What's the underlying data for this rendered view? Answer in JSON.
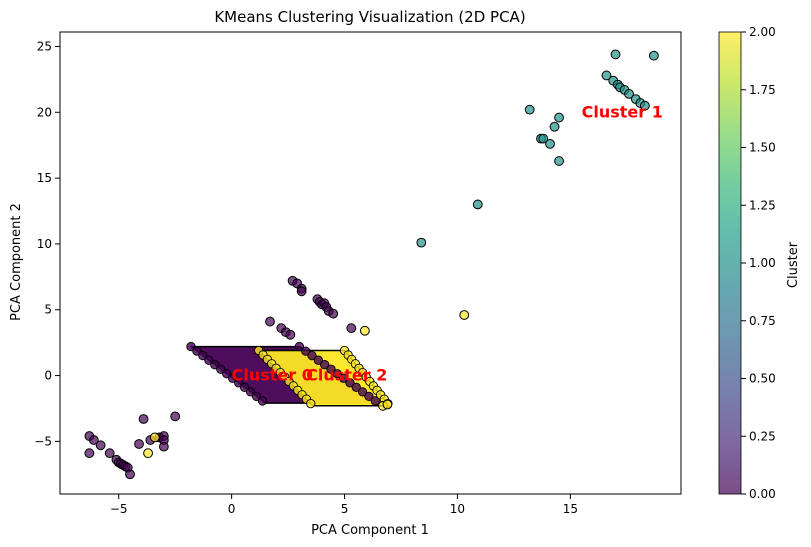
{
  "chart_data": {
    "type": "scatter",
    "title": "KMeans Clustering Visualization (2D PCA)",
    "xlabel": "PCA Component 1",
    "ylabel": "PCA Component 2",
    "xlim": [
      -7.6,
      19.9
    ],
    "ylim": [
      -9.0,
      26.1
    ],
    "x_ticks": [
      -5,
      0,
      5,
      10,
      15
    ],
    "y_ticks": [
      -5,
      0,
      5,
      10,
      15,
      20,
      25
    ],
    "grid": false,
    "colorbar": {
      "label": "Cluster",
      "range": [
        0.0,
        2.0
      ],
      "ticks": [
        "0.00",
        "0.25",
        "0.50",
        "0.75",
        "1.00",
        "1.25",
        "1.50",
        "1.75",
        "2.00"
      ],
      "colormap": "viridis",
      "colors": [
        "#440154",
        "#482878",
        "#3e4989",
        "#31688e",
        "#26828e",
        "#1f9e89",
        "#35b779",
        "#6ece58",
        "#b5de2b",
        "#fde725"
      ]
    },
    "cluster_colors": {
      "0": "#440154",
      "1": "#21918c",
      "2": "#fde725"
    },
    "point_alpha": 0.7,
    "marker_edge_color": "#000000",
    "annotations": [
      {
        "text": "Cluster 0",
        "x": 0.0,
        "y": 0.0,
        "color": "#ff0000"
      },
      {
        "text": "Cluster 1",
        "x": 15.5,
        "y": 20.0,
        "color": "#ff0000"
      },
      {
        "text": "Cluster 2",
        "x": 3.3,
        "y": 0.0,
        "color": "#ff0000"
      }
    ],
    "dense_regions": [
      {
        "cluster": 0,
        "corners": [
          [
            -1.8,
            2.2
          ],
          [
            3.0,
            2.2
          ],
          [
            6.5,
            -2.1
          ],
          [
            1.5,
            -2.1
          ]
        ]
      },
      {
        "cluster": 2,
        "corners": [
          [
            1.2,
            1.9
          ],
          [
            5.0,
            1.9
          ],
          [
            7.0,
            -2.3
          ],
          [
            3.6,
            -2.3
          ]
        ]
      }
    ],
    "series": [
      {
        "name": "Cluster 0",
        "cluster": 0,
        "points": [
          [
            -6.3,
            -4.6
          ],
          [
            -6.1,
            -4.9
          ],
          [
            -6.3,
            -5.9
          ],
          [
            -5.8,
            -5.3
          ],
          [
            -5.4,
            -5.9
          ],
          [
            -5.1,
            -6.4
          ],
          [
            -5.0,
            -6.6
          ],
          [
            -4.9,
            -6.7
          ],
          [
            -4.8,
            -6.8
          ],
          [
            -4.7,
            -6.9
          ],
          [
            -4.6,
            -7.0
          ],
          [
            -4.5,
            -7.5
          ],
          [
            -4.1,
            -5.2
          ],
          [
            -3.9,
            -3.3
          ],
          [
            -3.6,
            -4.9
          ],
          [
            -3.2,
            -4.7
          ],
          [
            -3.0,
            -4.6
          ],
          [
            -3.0,
            -4.9
          ],
          [
            -3.0,
            -5.4
          ],
          [
            -2.5,
            -3.1
          ],
          [
            1.7,
            4.1
          ],
          [
            2.2,
            3.6
          ],
          [
            2.4,
            3.3
          ],
          [
            2.6,
            3.1
          ],
          [
            2.7,
            7.2
          ],
          [
            2.9,
            7.0
          ],
          [
            3.1,
            6.6
          ],
          [
            3.1,
            6.4
          ],
          [
            3.8,
            5.8
          ],
          [
            3.9,
            5.6
          ],
          [
            4.0,
            5.4
          ],
          [
            4.1,
            5.5
          ],
          [
            4.2,
            5.2
          ],
          [
            4.3,
            4.9
          ],
          [
            4.5,
            4.7
          ],
          [
            5.3,
            3.6
          ]
        ]
      },
      {
        "name": "Cluster 1",
        "cluster": 1,
        "points": [
          [
            8.4,
            10.1
          ],
          [
            10.9,
            13.0
          ],
          [
            13.2,
            20.2
          ],
          [
            13.7,
            18.0
          ],
          [
            13.8,
            18.0
          ],
          [
            14.1,
            17.6
          ],
          [
            14.3,
            18.9
          ],
          [
            14.5,
            16.3
          ],
          [
            14.5,
            19.6
          ],
          [
            16.6,
            22.8
          ],
          [
            16.9,
            22.4
          ],
          [
            17.1,
            22.1
          ],
          [
            17.2,
            21.9
          ],
          [
            17.4,
            21.7
          ],
          [
            17.6,
            21.4
          ],
          [
            17.9,
            21.0
          ],
          [
            18.1,
            20.7
          ],
          [
            18.3,
            20.5
          ],
          [
            17.0,
            24.4
          ],
          [
            18.7,
            24.3
          ]
        ]
      },
      {
        "name": "Cluster 2",
        "cluster": 2,
        "points": [
          [
            -3.7,
            -5.9
          ],
          [
            -3.4,
            -4.7
          ],
          [
            5.9,
            3.4
          ],
          [
            10.3,
            4.6
          ],
          [
            6.7,
            -2.3
          ],
          [
            6.9,
            -2.2
          ]
        ]
      }
    ]
  }
}
